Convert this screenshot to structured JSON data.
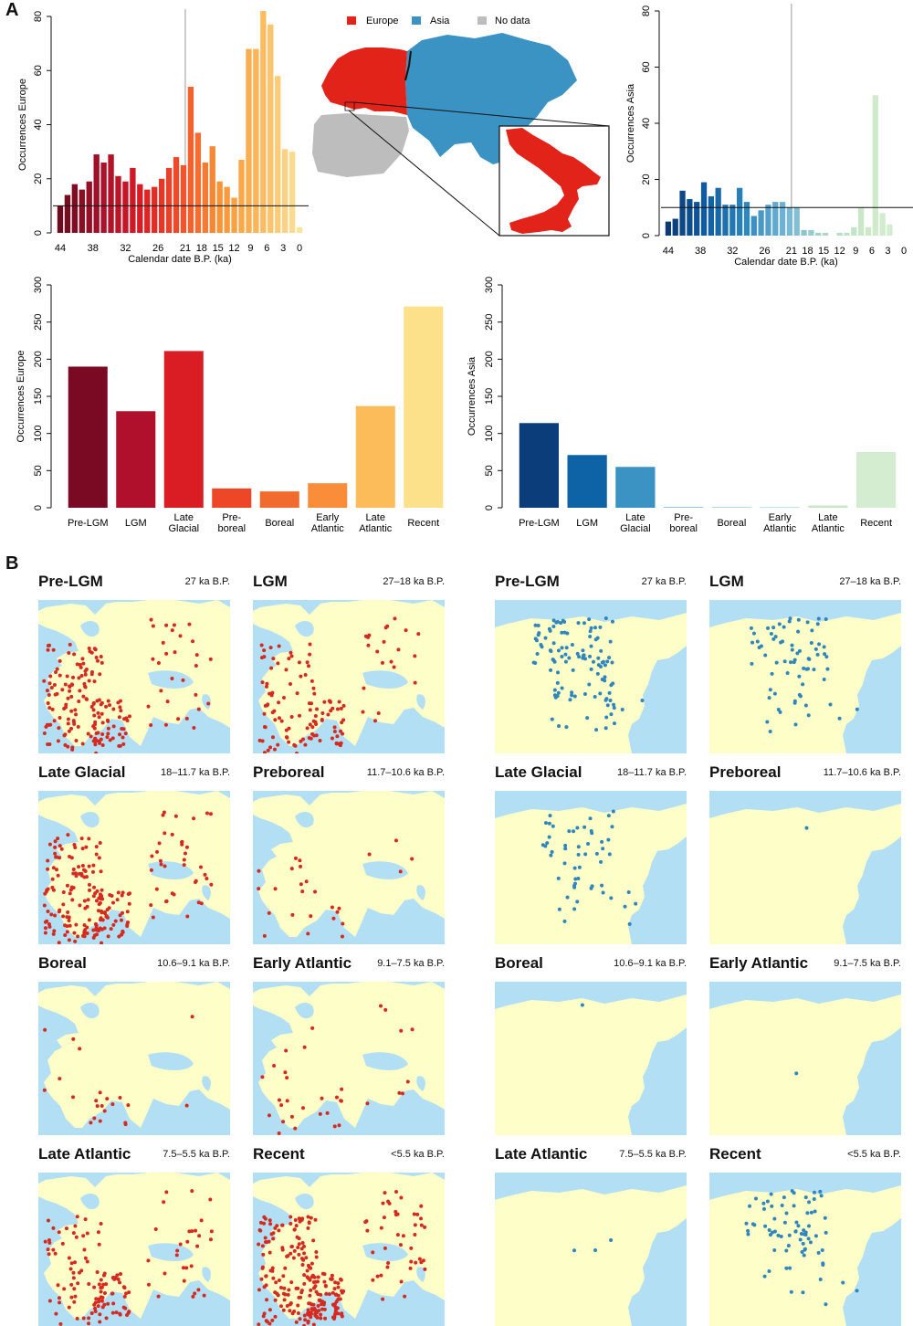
{
  "panel_labels": {
    "a": "A",
    "b": "B"
  },
  "legend": {
    "items": [
      {
        "label": "Europe",
        "color": "#e2231a"
      },
      {
        "label": "Asia",
        "color": "#3a93c3"
      },
      {
        "label": "No data",
        "color": "#bdbdbd"
      }
    ]
  },
  "chart_data": [
    {
      "id": "europe_time",
      "type": "bar",
      "ylabel": "Occurrences Europe",
      "xlabel": "Calendar date B.P. (ka)",
      "ylim": [
        0,
        80
      ],
      "yticks": [
        "0",
        "20",
        "40",
        "60",
        "80"
      ],
      "xticks": [
        "44",
        "38",
        "32",
        "26",
        "21",
        "18",
        "15",
        "12",
        "9",
        "6",
        "3",
        "0"
      ],
      "threshold": 10,
      "lgm_marker_ka": 21,
      "values": [
        10,
        14,
        18,
        16,
        19,
        29,
        26,
        29,
        21,
        19,
        24,
        18,
        16,
        17,
        20,
        24,
        28,
        25,
        54,
        37,
        26,
        32,
        19,
        17,
        13,
        27,
        68,
        68,
        82,
        77,
        58,
        31,
        30,
        2
      ]
    },
    {
      "id": "asia_time",
      "type": "bar",
      "ylabel": "Occurrences Asia",
      "xlabel": "Calendar date B.P. (ka)",
      "ylim": [
        0,
        80
      ],
      "yticks": [
        "0",
        "20",
        "40",
        "60",
        "80"
      ],
      "xticks": [
        "44",
        "38",
        "32",
        "26",
        "21",
        "18",
        "15",
        "12",
        "9",
        "6",
        "3",
        "0"
      ],
      "threshold": 10,
      "lgm_marker_ka": 21,
      "values": [
        5,
        6,
        16,
        13,
        12,
        19,
        14,
        17,
        11,
        11,
        17,
        12,
        7,
        9,
        11,
        12,
        12,
        10,
        10,
        2,
        2,
        1,
        1,
        0,
        1,
        1,
        3,
        10,
        3,
        50,
        8,
        4,
        0,
        0
      ]
    },
    {
      "id": "europe_periods",
      "type": "bar",
      "ylabel": "Occurrences Europe",
      "ylim": [
        0,
        300
      ],
      "yticks": [
        "0",
        "50",
        "100",
        "150",
        "200",
        "250",
        "300"
      ],
      "categories": [
        "Pre-LGM",
        "LGM",
        "Late Glacial",
        "Pre-boreal",
        "Boreal",
        "Early Atlantic",
        "Late Atlantic",
        "Recent"
      ],
      "category_lines": [
        [
          "Pre-LGM"
        ],
        [
          "LGM"
        ],
        [
          "Late",
          "Glacial"
        ],
        [
          "Pre-",
          "boreal"
        ],
        [
          "Boreal"
        ],
        [
          "Early",
          "Atlantic"
        ],
        [
          "Late",
          "Atlantic"
        ],
        [
          "Recent"
        ]
      ],
      "values": [
        190,
        130,
        211,
        26,
        22,
        33,
        137,
        271
      ]
    },
    {
      "id": "asia_periods",
      "type": "bar",
      "ylabel": "Occurrences Asia",
      "ylim": [
        0,
        300
      ],
      "yticks": [
        "0",
        "50",
        "100",
        "150",
        "200",
        "250",
        "300"
      ],
      "categories": [
        "Pre-LGM",
        "LGM",
        "Late Glacial",
        "Pre-boreal",
        "Boreal",
        "Early Atlantic",
        "Late Atlantic",
        "Recent"
      ],
      "category_lines": [
        [
          "Pre-LGM"
        ],
        [
          "LGM"
        ],
        [
          "Late",
          "Glacial"
        ],
        [
          "Pre-",
          "boreal"
        ],
        [
          "Boreal"
        ],
        [
          "Early",
          "Atlantic"
        ],
        [
          "Late",
          "Atlantic"
        ],
        [
          "Recent"
        ]
      ],
      "values": [
        114,
        71,
        55,
        1,
        1,
        1,
        3,
        75
      ]
    }
  ],
  "period_colors": {
    "europe": [
      "#7a0a24",
      "#b0102b",
      "#da1c24",
      "#ee4727",
      "#f26b2e",
      "#f98d3a",
      "#fdbc5a",
      "#fde08a"
    ],
    "asia": [
      "#0a3d7a",
      "#0d63a6",
      "#3a93c3",
      "#7cbcd8",
      "#9ed1e0",
      "#b3dfcf",
      "#c8e9c4",
      "#d4edd0"
    ]
  },
  "maps": {
    "europe_color": "#d42a1f",
    "asia_color": "#2f86be",
    "europe": [
      {
        "title": "Pre-LGM",
        "range": "27 ka B.P."
      },
      {
        "title": "LGM",
        "range": "27–18 ka B.P."
      },
      {
        "title": "Late Glacial",
        "range": "18–11.7 ka B.P."
      },
      {
        "title": "Preboreal",
        "range": "11.7–10.6 ka B.P."
      },
      {
        "title": "Boreal",
        "range": "10.6–9.1 ka B.P."
      },
      {
        "title": "Early Atlantic",
        "range": "9.1–7.5 ka B.P."
      },
      {
        "title": "Late Atlantic",
        "range": "7.5–5.5 ka B.P."
      },
      {
        "title": "Recent",
        "range": "<5.5 ka B.P."
      }
    ],
    "asia": [
      {
        "title": "Pre-LGM",
        "range": "27 ka B.P."
      },
      {
        "title": "LGM",
        "range": "27–18 ka B.P."
      },
      {
        "title": "Late Glacial",
        "range": "18–11.7 ka B.P."
      },
      {
        "title": "Preboreal",
        "range": "11.7–10.6 ka B.P."
      },
      {
        "title": "Boreal",
        "range": "10.6–9.1 ka B.P."
      },
      {
        "title": "Early Atlantic",
        "range": "9.1–7.5 ka B.P."
      },
      {
        "title": "Late Atlantic",
        "range": "7.5–5.5 ka B.P."
      },
      {
        "title": "Recent",
        "range": "<5.5 ka B.P."
      }
    ]
  }
}
